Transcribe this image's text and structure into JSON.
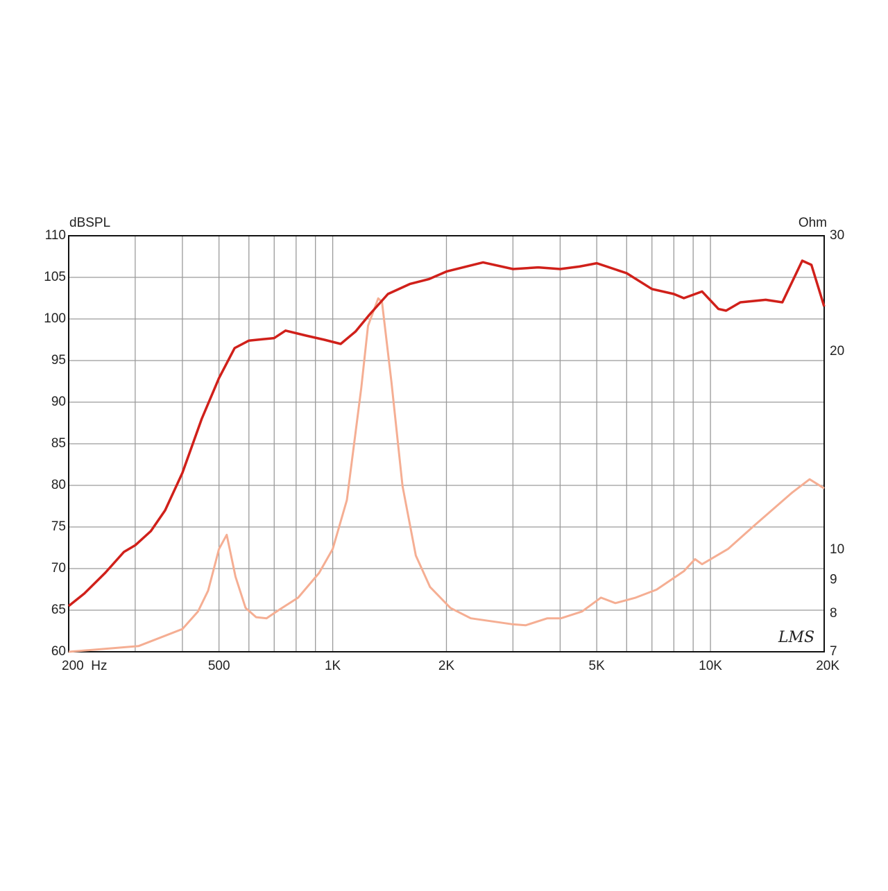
{
  "chart_data": {
    "type": "line",
    "ylabel": "dBSPL",
    "y2label": "Ohm",
    "annotation": "LMS",
    "xscale": "log",
    "y2scale": "log",
    "grid": true,
    "xlim": [
      200,
      20000
    ],
    "xticks": [
      {
        "value": 200,
        "label": "200  Hz"
      },
      500,
      {
        "value": 1000,
        "label": "1K"
      },
      {
        "value": 2000,
        "label": "2K"
      },
      {
        "value": 5000,
        "label": "5K"
      },
      {
        "value": 10000,
        "label": "10K"
      },
      {
        "value": 20000,
        "label": "20K"
      }
    ],
    "xgrid": [
      300,
      400,
      600,
      700,
      800,
      900,
      3000,
      4000,
      6000,
      7000,
      8000,
      9000
    ],
    "ylim": [
      60,
      110
    ],
    "yticks": [
      60,
      65,
      70,
      75,
      80,
      85,
      90,
      95,
      100,
      105,
      110
    ],
    "y2lim": [
      7,
      30
    ],
    "y2ticks": [
      7,
      8,
      9,
      10,
      20,
      30
    ],
    "series": [
      {
        "color": "#d0201a",
        "axis": "y",
        "x": [
          200,
          220,
          250,
          280,
          300,
          330,
          360,
          400,
          450,
          500,
          550,
          600,
          700,
          750,
          850,
          950,
          1050,
          1150,
          1250,
          1400,
          1600,
          1800,
          2000,
          2500,
          3000,
          3500,
          4000,
          4500,
          5000,
          6000,
          7000,
          8000,
          8500,
          9500,
          10500,
          11000,
          12000,
          14000,
          15500,
          17500,
          18500,
          20000
        ],
        "values": [
          65.5,
          67,
          69.5,
          72,
          72.8,
          74.5,
          77,
          81.5,
          88,
          92.9,
          96.5,
          97.4,
          97.7,
          98.6,
          98,
          97.5,
          97,
          98.5,
          100.5,
          103,
          104.2,
          104.8,
          105.7,
          106.8,
          106,
          106.2,
          106,
          106.3,
          106.7,
          105.5,
          103.6,
          103,
          102.5,
          103.3,
          101.2,
          101,
          102,
          102.3,
          102,
          107,
          106.5,
          101.5
        ]
      },
      {
        "color": "#f5ae93",
        "axis": "y2",
        "x": [
          200,
          306,
          400,
          440,
          468,
          500,
          524,
          553,
          588,
          627,
          668,
          720,
          810,
          920,
          1000,
          1090,
          1190,
          1240,
          1320,
          1350,
          1430,
          1530,
          1660,
          1810,
          2050,
          2320,
          2980,
          3240,
          3700,
          4020,
          4570,
          5130,
          5600,
          6340,
          7200,
          8500,
          9100,
          9500,
          11130,
          13100,
          16400,
          18300,
          20000
        ],
        "values": [
          7.0,
          7.14,
          7.58,
          8.06,
          8.67,
          10.03,
          10.54,
          9.1,
          8.16,
          7.9,
          7.87,
          8.1,
          8.46,
          9.22,
          10.03,
          11.9,
          17.6,
          21.9,
          24.1,
          23.8,
          18.0,
          12.5,
          9.8,
          8.78,
          8.16,
          7.87,
          7.71,
          7.68,
          7.87,
          7.87,
          8.06,
          8.46,
          8.3,
          8.46,
          8.7,
          9.28,
          9.68,
          9.51,
          10.03,
          10.9,
          12.2,
          12.8,
          12.4
        ]
      }
    ]
  }
}
